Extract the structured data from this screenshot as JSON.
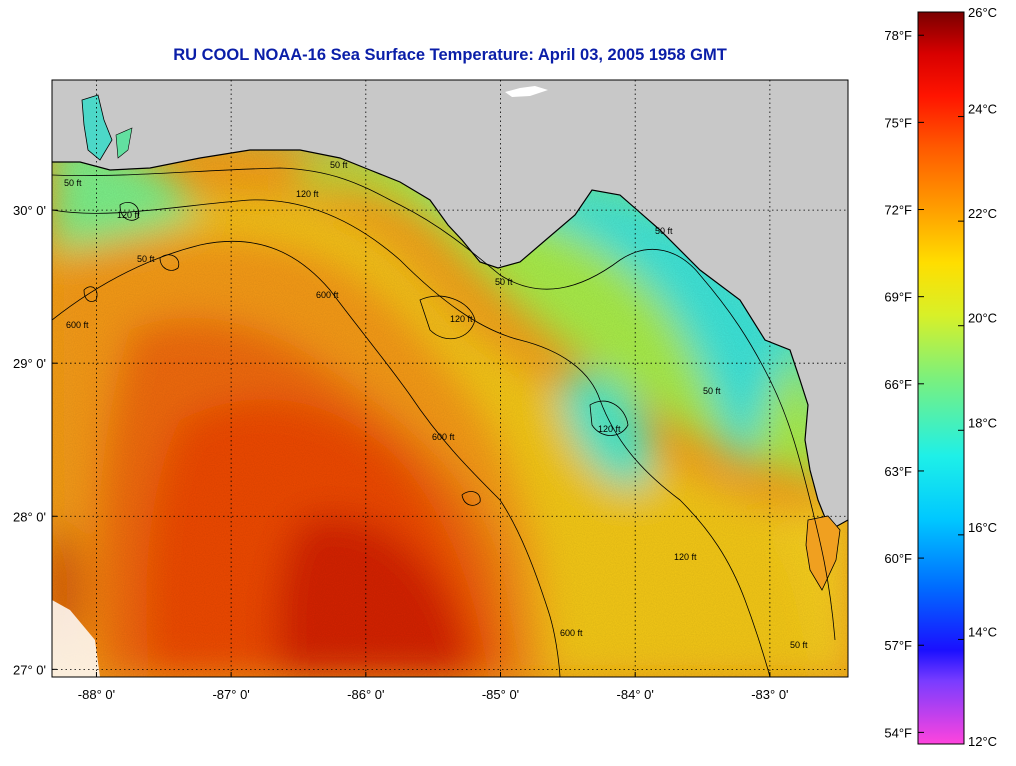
{
  "title": "RU COOL  NOAA-16  Sea Surface Temperature:  April 03, 2005 1958 GMT",
  "map": {
    "lon_range": [
      -88.33,
      -82.42
    ],
    "lat_range": [
      26.95,
      30.85
    ],
    "x_ticks": [
      {
        "value": -88,
        "label": "-88° 0'"
      },
      {
        "value": -87,
        "label": "-87° 0'"
      },
      {
        "value": -86,
        "label": "-86° 0'"
      },
      {
        "value": -85,
        "label": "-85° 0'"
      },
      {
        "value": -84,
        "label": "-84° 0'"
      },
      {
        "value": -83,
        "label": "-83° 0'"
      }
    ],
    "y_ticks": [
      {
        "value": 30,
        "label": "30° 0'"
      },
      {
        "value": 29,
        "label": "29° 0'"
      },
      {
        "value": 28,
        "label": "28° 0'"
      },
      {
        "value": 27,
        "label": "27° 0'"
      }
    ],
    "grid": "dotted",
    "land_color": "#c8c8c8",
    "isobath_labels": [
      "50 ft",
      "120 ft",
      "600 ft"
    ]
  },
  "colorbar": {
    "fahrenheit_labels": [
      "78°F",
      "75°F",
      "72°F",
      "69°F",
      "66°F",
      "63°F",
      "60°F",
      "57°F",
      "54°F"
    ],
    "celsius_labels": [
      "26°C",
      "24°C",
      "22°C",
      "20°C",
      "18°C",
      "16°C",
      "14°C",
      "12°C"
    ],
    "celsius_range": [
      12,
      26
    ],
    "stops": [
      {
        "c": 12,
        "color": "#ff44dd"
      },
      {
        "c": 13.2,
        "color": "#7a3cff"
      },
      {
        "c": 13.8,
        "color": "#1a10ff"
      },
      {
        "c": 15,
        "color": "#006cff"
      },
      {
        "c": 16.3,
        "color": "#00c8ff"
      },
      {
        "c": 17.5,
        "color": "#1ef0e8"
      },
      {
        "c": 19,
        "color": "#7cf07c"
      },
      {
        "c": 20.2,
        "color": "#d8f028"
      },
      {
        "c": 21.2,
        "color": "#ffde00"
      },
      {
        "c": 22.2,
        "color": "#ffa000"
      },
      {
        "c": 23.4,
        "color": "#ff5a00"
      },
      {
        "c": 24.4,
        "color": "#ff1400"
      },
      {
        "c": 25.2,
        "color": "#d80000"
      },
      {
        "c": 26,
        "color": "#7a0000"
      }
    ]
  }
}
